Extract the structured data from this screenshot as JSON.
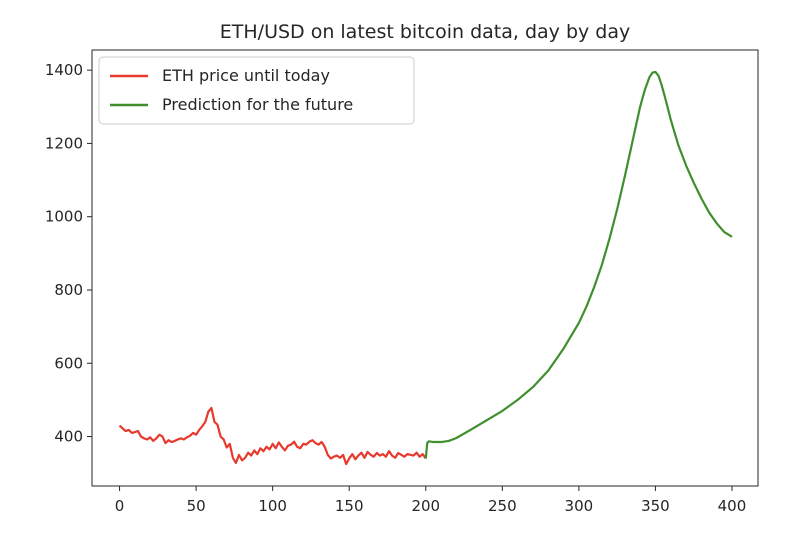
{
  "chart_data": {
    "type": "line",
    "title": "ETH/USD on latest bitcoin data, day by day",
    "xlabel": "",
    "ylabel": "",
    "xlim": [
      -18,
      417
    ],
    "ylim": [
      265,
      1455
    ],
    "xticks": [
      0,
      50,
      100,
      150,
      200,
      250,
      300,
      350,
      400
    ],
    "yticks": [
      400,
      600,
      800,
      1000,
      1200,
      1400
    ],
    "grid": false,
    "legend_position": "upper-left",
    "colors": {
      "history": "#e8392d",
      "prediction": "#3f8f2d",
      "axis": "#262626"
    },
    "series": [
      {
        "name": "ETH price until today",
        "x": [
          0,
          2,
          4,
          6,
          8,
          10,
          12,
          14,
          16,
          18,
          20,
          22,
          24,
          26,
          28,
          30,
          32,
          34,
          36,
          38,
          40,
          42,
          44,
          46,
          48,
          50,
          52,
          54,
          56,
          58,
          60,
          62,
          64,
          66,
          68,
          70,
          72,
          74,
          76,
          78,
          80,
          82,
          84,
          86,
          88,
          90,
          92,
          94,
          96,
          98,
          100,
          102,
          104,
          106,
          108,
          110,
          112,
          114,
          116,
          118,
          120,
          122,
          124,
          126,
          128,
          130,
          132,
          134,
          136,
          138,
          140,
          142,
          144,
          146,
          148,
          150,
          152,
          154,
          156,
          158,
          160,
          162,
          164,
          166,
          168,
          170,
          172,
          174,
          176,
          178,
          180,
          182,
          184,
          186,
          188,
          190,
          192,
          194,
          196,
          198,
          200
        ],
        "y": [
          430,
          422,
          415,
          418,
          410,
          412,
          415,
          400,
          395,
          392,
          398,
          388,
          395,
          405,
          400,
          382,
          390,
          385,
          388,
          392,
          395,
          392,
          398,
          402,
          410,
          405,
          418,
          428,
          440,
          468,
          478,
          440,
          432,
          400,
          392,
          370,
          380,
          342,
          328,
          350,
          335,
          342,
          356,
          348,
          362,
          352,
          368,
          360,
          372,
          365,
          380,
          368,
          384,
          372,
          362,
          375,
          378,
          386,
          372,
          368,
          380,
          378,
          386,
          390,
          382,
          378,
          385,
          372,
          350,
          340,
          345,
          348,
          342,
          350,
          325,
          340,
          352,
          338,
          348,
          356,
          342,
          358,
          350,
          345,
          355,
          348,
          352,
          345,
          360,
          348,
          342,
          355,
          350,
          345,
          352,
          350,
          348,
          356,
          345,
          352,
          340
        ]
      },
      {
        "name": "Prediction for the future",
        "x": [
          200,
          201,
          202,
          205,
          210,
          215,
          220,
          230,
          240,
          250,
          260,
          270,
          280,
          290,
          300,
          305,
          310,
          315,
          320,
          325,
          330,
          335,
          340,
          343,
          346,
          348,
          350,
          352,
          354,
          356,
          358,
          360,
          365,
          370,
          375,
          380,
          385,
          390,
          395,
          400
        ],
        "y": [
          340,
          383,
          387,
          385,
          385,
          388,
          396,
          420,
          445,
          470,
          500,
          535,
          580,
          640,
          710,
          755,
          808,
          868,
          940,
          1020,
          1110,
          1205,
          1300,
          1345,
          1380,
          1393,
          1395,
          1385,
          1360,
          1330,
          1298,
          1265,
          1195,
          1140,
          1093,
          1050,
          1012,
          982,
          958,
          945
        ]
      }
    ]
  }
}
